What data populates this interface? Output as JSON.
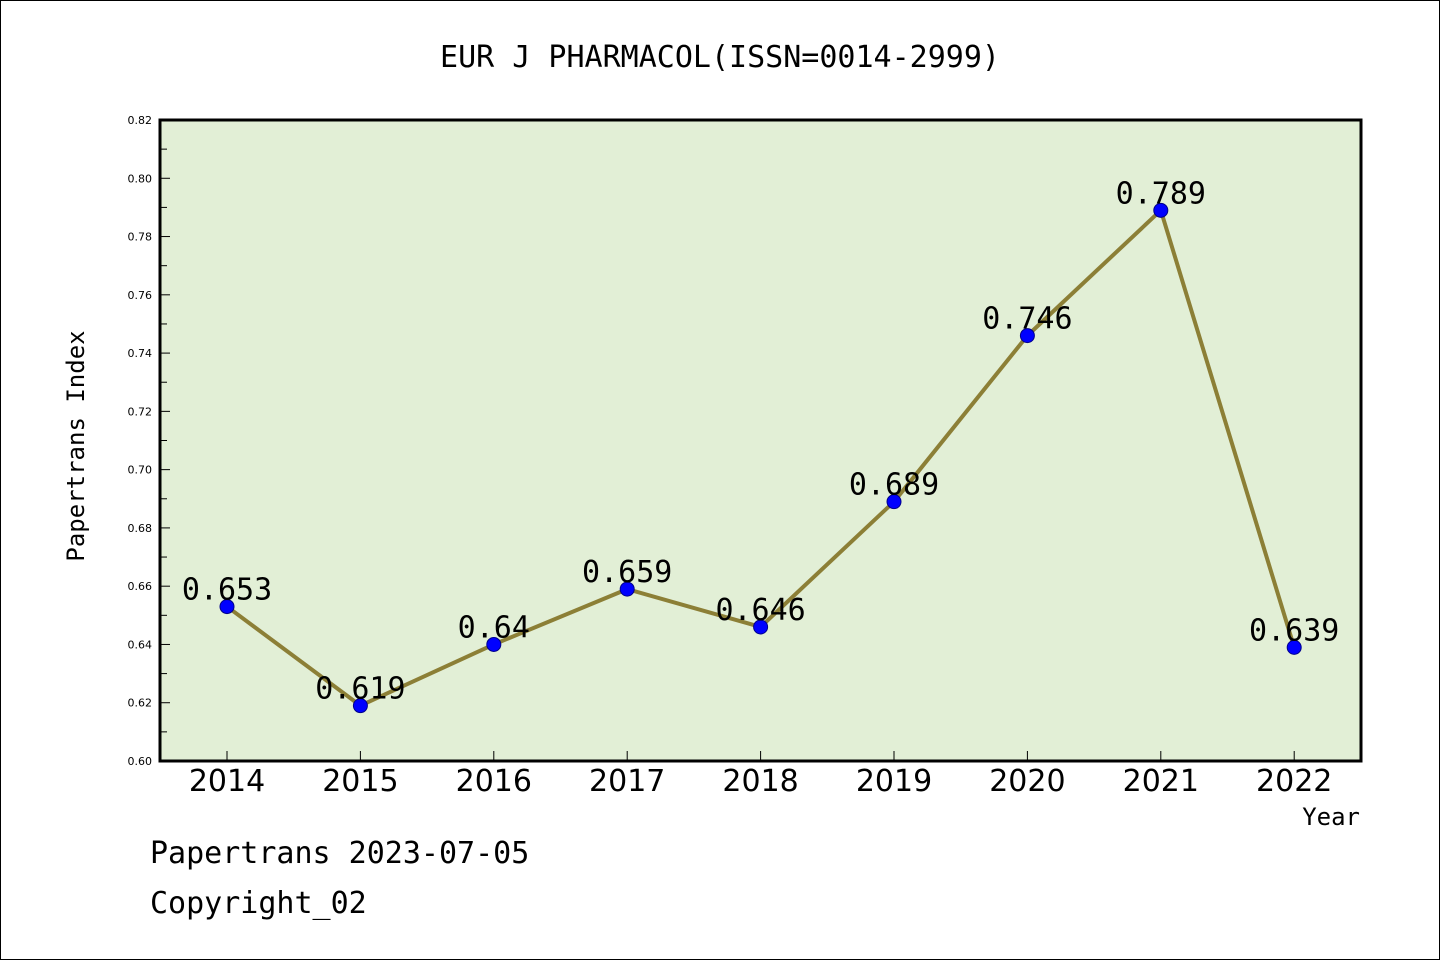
{
  "chart_data": {
    "type": "line",
    "title": "EUR J PHARMACOL(ISSN=0014-2999)",
    "xlabel": "Year",
    "ylabel": "Papertrans Index",
    "categories": [
      "2014",
      "2015",
      "2016",
      "2017",
      "2018",
      "2019",
      "2020",
      "2021",
      "2022"
    ],
    "series": [
      {
        "values": [
          0.653,
          0.619,
          0.64,
          0.659,
          0.646,
          0.689,
          0.746,
          0.789,
          0.639
        ],
        "labels": [
          "0.653",
          "0.619",
          "0.64",
          "0.659",
          "0.646",
          "0.689",
          "0.746",
          "0.789",
          "0.639"
        ]
      }
    ],
    "ylim": [
      0.6,
      0.82
    ],
    "yticks": [
      "0.60",
      "0.62",
      "0.64",
      "0.66",
      "0.68",
      "0.70",
      "0.72",
      "0.74",
      "0.76",
      "0.78",
      "0.80",
      "0.82"
    ],
    "grid": false,
    "colors": {
      "plot_background": "#e2efd6",
      "line": "#8c7f36",
      "marker": "#0000ff"
    }
  },
  "footer": {
    "line1": "Papertrans 2023-07-05",
    "line2": "Copyright_02"
  }
}
